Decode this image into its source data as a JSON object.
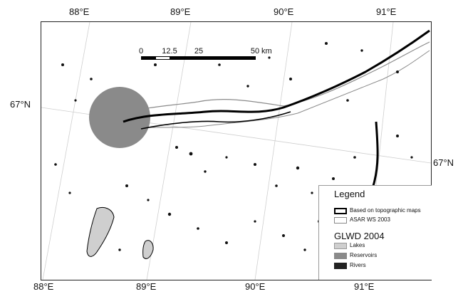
{
  "top_ticks": [
    "88°E",
    "89°E",
    "90°E",
    "91°E"
  ],
  "bottom_ticks": [
    "88°E",
    "89°E",
    "90°E",
    "91°E"
  ],
  "left_ticks": [
    "67°N"
  ],
  "right_ticks": [
    "67°N"
  ],
  "scale_bar": {
    "labels": [
      "0",
      "12.5",
      "25",
      "50"
    ],
    "unit": "km"
  },
  "legend": {
    "title": "Legend",
    "line_items": [
      {
        "label": "Based on topographic maps",
        "color": "#000000"
      },
      {
        "label": "ASAR WS 2003",
        "color": "#888888"
      }
    ],
    "group_title": "GLWD 2004",
    "fill_items": [
      {
        "label": "Lakes",
        "color": "#cfcfcf"
      },
      {
        "label": "Reservoirs",
        "color": "#8a8a8a"
      },
      {
        "label": "Rivers",
        "color": "#222222"
      }
    ]
  }
}
